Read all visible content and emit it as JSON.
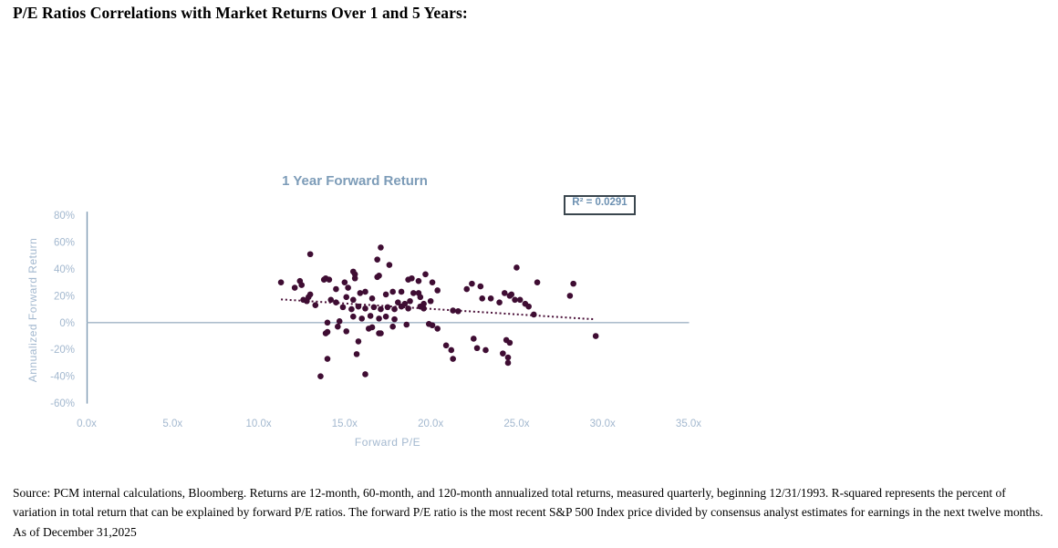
{
  "header": {
    "title": "P/E Ratios Correlations with Market Returns Over 1 and 5 Years:"
  },
  "colors": {
    "point": "#3f0d33",
    "trend": "#4a1038",
    "chart_title": "#7d9cb8",
    "axis_label": "#a3b8cf",
    "axis_line": "#7f9bb3",
    "zero_line": "#9fb3c4",
    "r2_text": "#6d91b2",
    "r2_border": "#3a464e"
  },
  "chart_data": {
    "type": "scatter",
    "title": "1 Year Forward Return",
    "xlabel": "Forward P/E",
    "ylabel": "Annualized  Forward  Return",
    "r_squared": 0.0291,
    "r_squared_label": "R² = 0.0291",
    "xlim": [
      0,
      35
    ],
    "ylim": [
      -60,
      80
    ],
    "grid": false,
    "x_tick_unit": "x",
    "y_tick_unit": "%",
    "x_ticks": [
      {
        "v": 0,
        "label": "0.0x"
      },
      {
        "v": 5,
        "label": "5.0x"
      },
      {
        "v": 10,
        "label": "10.0x"
      },
      {
        "v": 15,
        "label": "15.0x"
      },
      {
        "v": 20,
        "label": "20.0x"
      },
      {
        "v": 25,
        "label": "25.0x"
      },
      {
        "v": 30,
        "label": "30.0x"
      },
      {
        "v": 35,
        "label": "35.0x"
      }
    ],
    "y_ticks": [
      {
        "v": 80,
        "label": "80%"
      },
      {
        "v": 60,
        "label": "60%"
      },
      {
        "v": 40,
        "label": "40%"
      },
      {
        "v": 20,
        "label": "20%"
      },
      {
        "v": 0,
        "label": "0%"
      },
      {
        "v": -20,
        "label": "-20%"
      },
      {
        "v": -40,
        "label": "-40%"
      },
      {
        "v": -60,
        "label": "-60%"
      }
    ],
    "trendline": {
      "x1": 11.3,
      "y1": 17.3,
      "x2": 29.5,
      "y2": 2.5,
      "style": "dotted"
    },
    "points": [
      [
        11.3,
        30
      ],
      [
        12.1,
        26
      ],
      [
        12.4,
        31
      ],
      [
        12.5,
        28
      ],
      [
        12.6,
        17
      ],
      [
        12.8,
        16
      ],
      [
        12.9,
        19
      ],
      [
        13.0,
        51
      ],
      [
        13.0,
        21
      ],
      [
        13.3,
        13
      ],
      [
        13.6,
        -40
      ],
      [
        13.8,
        32
      ],
      [
        13.9,
        33
      ],
      [
        13.9,
        -8
      ],
      [
        14.0,
        0
      ],
      [
        14.0,
        -7
      ],
      [
        14.0,
        -27
      ],
      [
        14.1,
        32
      ],
      [
        14.2,
        17
      ],
      [
        14.5,
        25
      ],
      [
        14.5,
        15
      ],
      [
        14.6,
        -3
      ],
      [
        14.7,
        1
      ],
      [
        14.9,
        11.5
      ],
      [
        15.0,
        30
      ],
      [
        15.1,
        19
      ],
      [
        15.1,
        -6.5
      ],
      [
        15.2,
        26
      ],
      [
        15.4,
        10
      ],
      [
        15.5,
        38
      ],
      [
        15.5,
        17
      ],
      [
        15.5,
        4.5
      ],
      [
        15.6,
        36
      ],
      [
        15.6,
        33
      ],
      [
        15.7,
        -23.5
      ],
      [
        15.8,
        12
      ],
      [
        15.8,
        -14
      ],
      [
        15.9,
        22
      ],
      [
        16.0,
        3
      ],
      [
        16.2,
        23
      ],
      [
        16.2,
        10.5
      ],
      [
        16.2,
        -38.5
      ],
      [
        16.4,
        -4.5
      ],
      [
        16.5,
        5
      ],
      [
        16.6,
        18
      ],
      [
        16.6,
        -3.5
      ],
      [
        16.7,
        11.5
      ],
      [
        16.9,
        47
      ],
      [
        16.9,
        34
      ],
      [
        17.0,
        35
      ],
      [
        17.0,
        3
      ],
      [
        17.0,
        -8
      ],
      [
        17.1,
        56
      ],
      [
        17.1,
        10
      ],
      [
        17.1,
        -8
      ],
      [
        17.4,
        21
      ],
      [
        17.4,
        4.5
      ],
      [
        17.5,
        11.5
      ],
      [
        17.6,
        43
      ],
      [
        17.8,
        23
      ],
      [
        17.8,
        -3
      ],
      [
        17.9,
        10
      ],
      [
        17.9,
        2.5
      ],
      [
        18.1,
        15
      ],
      [
        18.3,
        23
      ],
      [
        18.3,
        12
      ],
      [
        18.5,
        14
      ],
      [
        18.6,
        -1.5
      ],
      [
        18.7,
        32
      ],
      [
        18.7,
        10.5
      ],
      [
        18.8,
        16
      ],
      [
        18.9,
        33
      ],
      [
        19.0,
        22
      ],
      [
        19.3,
        31
      ],
      [
        19.3,
        22
      ],
      [
        19.4,
        19
      ],
      [
        19.4,
        12
      ],
      [
        19.6,
        14
      ],
      [
        19.6,
        10.5
      ],
      [
        19.7,
        36
      ],
      [
        19.9,
        -1
      ],
      [
        20.0,
        16
      ],
      [
        20.1,
        30
      ],
      [
        20.1,
        -2
      ],
      [
        20.4,
        24
      ],
      [
        20.4,
        -4.5
      ],
      [
        20.9,
        -17
      ],
      [
        21.2,
        -20.5
      ],
      [
        21.3,
        9
      ],
      [
        21.3,
        -27
      ],
      [
        21.6,
        8.5
      ],
      [
        22.1,
        25
      ],
      [
        22.4,
        29
      ],
      [
        22.5,
        -12
      ],
      [
        22.7,
        -19
      ],
      [
        22.9,
        27
      ],
      [
        23.0,
        18
      ],
      [
        23.2,
        -20.5
      ],
      [
        23.5,
        18
      ],
      [
        24.0,
        15
      ],
      [
        24.2,
        -23
      ],
      [
        24.3,
        22
      ],
      [
        24.4,
        -13
      ],
      [
        24.5,
        -26
      ],
      [
        24.5,
        -30
      ],
      [
        24.6,
        20
      ],
      [
        24.6,
        -15
      ],
      [
        24.7,
        21
      ],
      [
        24.9,
        17
      ],
      [
        25.0,
        41
      ],
      [
        25.2,
        17
      ],
      [
        25.5,
        14
      ],
      [
        25.7,
        12
      ],
      [
        26.0,
        6
      ],
      [
        26.2,
        30
      ],
      [
        28.1,
        20
      ],
      [
        28.3,
        29
      ],
      [
        29.6,
        -10
      ]
    ]
  },
  "footer": {
    "source_text": "Source: PCM internal calculations, Bloomberg. Returns are 12-month, 60-month, and 120-month annualized total returns, measured quarterly, beginning 12/31/1993. R-squared represents the percent of variation in total return that can be explained by forward P/E ratios. The forward P/E ratio is the most recent S&P 500 Index price divided by consensus analyst estimates for earnings in the next twelve months. As of December 31,2025"
  }
}
